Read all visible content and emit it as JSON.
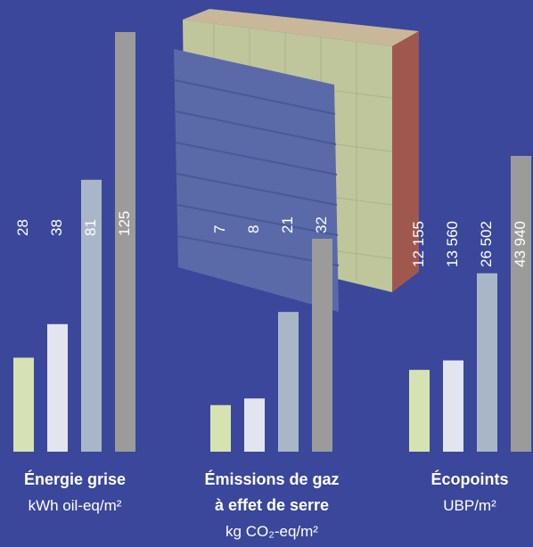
{
  "chart_data": [
    {
      "type": "bar",
      "title": [
        "Énergie grise"
      ],
      "unit": "kWh oil-eq/m²",
      "values": [
        28,
        38,
        81,
        125
      ],
      "colors": [
        "#d6e3b1",
        "#e2e5ef",
        "#a9b6c8",
        "#9b9b9b"
      ]
    },
    {
      "type": "bar",
      "title": [
        "Émissions de gaz",
        "à effet de serre"
      ],
      "unit": "kg CO₂-eq/m²",
      "values": [
        7,
        8,
        21,
        32
      ],
      "colors": [
        "#d6e3b1",
        "#e2e5ef",
        "#a9b6c8",
        "#9b9b9b"
      ]
    },
    {
      "type": "bar",
      "title": [
        "Écopoints"
      ],
      "unit": "UBP/m²",
      "values": [
        12155,
        13560,
        26502,
        43940
      ],
      "value_labels": [
        "12 155",
        "13 560",
        "26 502",
        "43 940"
      ],
      "colors": [
        "#d6e3b1",
        "#e2e5ef",
        "#a9b6c8",
        "#9b9b9b"
      ]
    }
  ]
}
